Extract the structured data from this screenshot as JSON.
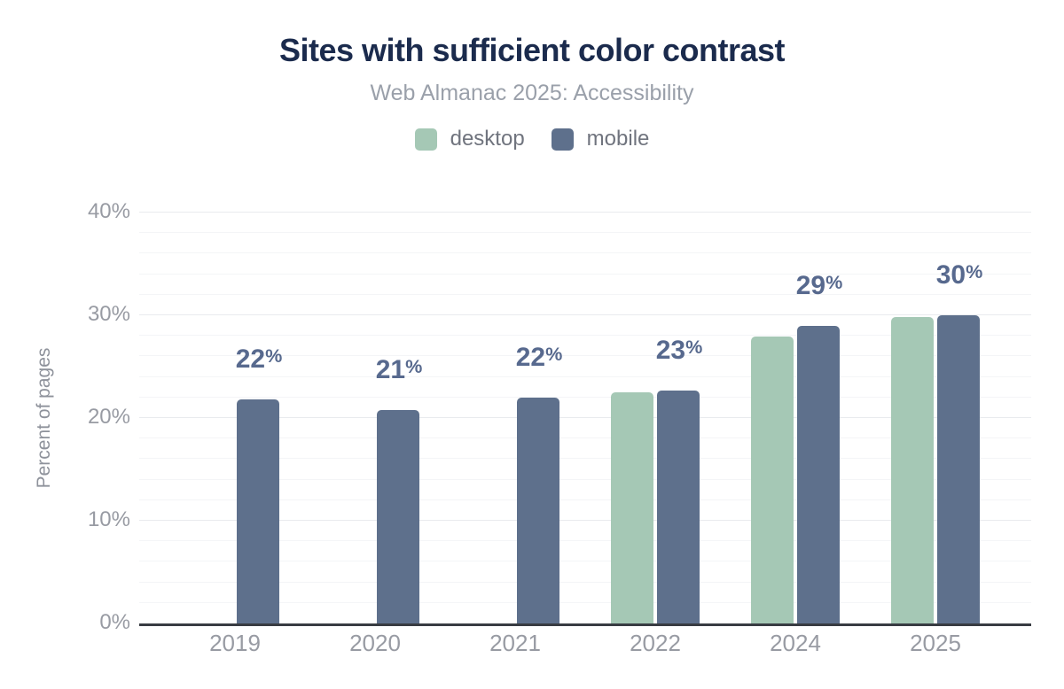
{
  "header": {
    "title": "Sites with sufficient color contrast",
    "subtitle": "Web Almanac 2025: Accessibility"
  },
  "legend": {
    "items": [
      {
        "label": "desktop",
        "color": "#a5c8b5"
      },
      {
        "label": "mobile",
        "color": "#5e708c"
      }
    ]
  },
  "chart_data": {
    "type": "bar",
    "title": "Sites with sufficient color contrast",
    "subtitle": "Web Almanac 2025: Accessibility",
    "categories": [
      "2019",
      "2020",
      "2021",
      "2022",
      "2024",
      "2025"
    ],
    "series": [
      {
        "name": "desktop",
        "color": "#a5c8b5",
        "values": [
          null,
          null,
          null,
          22.5,
          27.9,
          29.8
        ]
      },
      {
        "name": "mobile",
        "color": "#5e708c",
        "values": [
          21.8,
          20.8,
          22.0,
          22.7,
          29.0,
          30.0
        ]
      }
    ],
    "data_labels": [
      "22%",
      "21%",
      "22%",
      "23%",
      "29%",
      "30%"
    ],
    "xlabel": "",
    "ylabel": "Percent of pages",
    "ylim": [
      0,
      40
    ],
    "y_tick_labels": [
      "0%",
      "10%",
      "20%",
      "30%",
      "40%"
    ],
    "y_major_step": 10,
    "y_minor_step": 2,
    "grid": true,
    "legend_position": "top",
    "colors": {
      "data_label": "#57698e",
      "axis_label": "#989ba3",
      "axis_line": "#383c42",
      "grid_major": "#e9ebee",
      "grid_minor": "#f4f5f7",
      "title": "#1b2b4d",
      "subtitle": "#9aa0aa"
    }
  }
}
